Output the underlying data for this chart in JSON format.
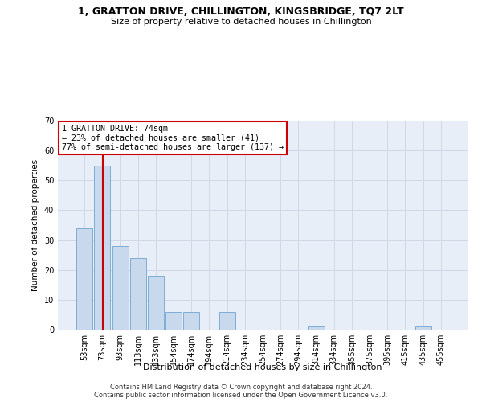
{
  "title": "1, GRATTON DRIVE, CHILLINGTON, KINGSBRIDGE, TQ7 2LT",
  "subtitle": "Size of property relative to detached houses in Chillington",
  "xlabel": "Distribution of detached houses by size in Chillington",
  "ylabel": "Number of detached properties",
  "categories": [
    "53sqm",
    "73sqm",
    "93sqm",
    "113sqm",
    "133sqm",
    "154sqm",
    "174sqm",
    "194sqm",
    "214sqm",
    "234sqm",
    "254sqm",
    "274sqm",
    "294sqm",
    "314sqm",
    "334sqm",
    "355sqm",
    "375sqm",
    "395sqm",
    "415sqm",
    "435sqm",
    "455sqm"
  ],
  "values": [
    34,
    55,
    28,
    24,
    18,
    6,
    6,
    0,
    6,
    0,
    0,
    0,
    0,
    1,
    0,
    0,
    0,
    0,
    0,
    1,
    0
  ],
  "bar_color": "#c8d8ed",
  "bar_edge_color": "#7fadd4",
  "bar_edge_width": 0.7,
  "property_line_x": 1.05,
  "property_label": "1 GRATTON DRIVE: 74sqm",
  "annotation_line1": "← 23% of detached houses are smaller (41)",
  "annotation_line2": "77% of semi-detached houses are larger (137) →",
  "annotation_box_color": "#ffffff",
  "annotation_box_edge_color": "#cc0000",
  "property_line_color": "#cc0000",
  "grid_color": "#d0d8e8",
  "background_color": "#ffffff",
  "plot_bg_color": "#e8eef8",
  "ylim": [
    0,
    70
  ],
  "yticks": [
    0,
    10,
    20,
    30,
    40,
    50,
    60,
    70
  ],
  "footer1": "Contains HM Land Registry data © Crown copyright and database right 2024.",
  "footer2": "Contains public sector information licensed under the Open Government Licence v3.0."
}
